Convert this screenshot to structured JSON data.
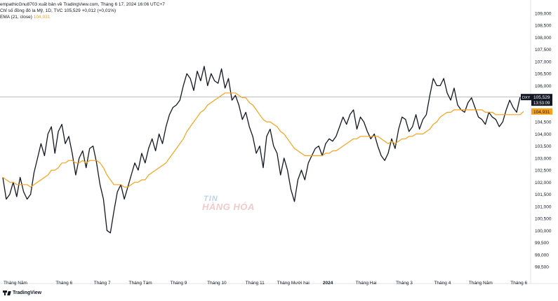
{
  "header": {
    "publisher_line": "empathicGnu8703 xuất bản về TradingView.com, Tháng 6 17, 2024 16:06 UTC+7",
    "symbol_line": "Chỉ số đồng đô la Mỹ, 1D, TVC  105,529  +0,012 (+0,01%)",
    "ema_label": "EMA (21, close)",
    "ema_value": "104,931"
  },
  "watermark": {
    "line1": "TIN",
    "line2": "HÀNG HÓA"
  },
  "footer": {
    "brand": "TradingView"
  },
  "colors": {
    "price": "#131722",
    "ema": "#f7a21b",
    "last_price_line": "#9598a1",
    "grid": "#ffffff"
  },
  "chart_data": {
    "type": "line",
    "y_axis": {
      "ticks": [
        "109,000",
        "108,500",
        "108,000",
        "107,500",
        "107,000",
        "106,500",
        "106,000",
        "105,500",
        "105,000",
        "104,500",
        "104,000",
        "103,500",
        "103,000",
        "102,500",
        "102,000",
        "101,500",
        "101,000",
        "100,500",
        "100,000",
        "99,500",
        "99,000",
        "98,500"
      ],
      "range": [
        98.3,
        109.1
      ]
    },
    "x_axis": {
      "labels": [
        "Tháng Năm",
        "Tháng 6",
        "Tháng 7",
        "Tháng Tám",
        "Tháng 9",
        "Tháng 10",
        "Tháng 11",
        "Tháng Mười hai",
        "2024",
        "Tháng Hai",
        "Tháng 3",
        "Tháng 4",
        "Tháng Năm",
        "Tháng 6"
      ],
      "label_index": [
        0,
        14,
        25,
        36,
        47,
        58,
        69,
        80,
        90,
        101,
        112,
        123,
        134,
        145
      ]
    },
    "series": [
      {
        "name": "DXY",
        "values": [
          102.2,
          101.3,
          101.5,
          102.0,
          101.4,
          102.2,
          101.6,
          101.3,
          101.5,
          102.4,
          103.0,
          103.6,
          103.1,
          104.0,
          104.3,
          103.2,
          104.1,
          104.4,
          103.6,
          103.9,
          103.2,
          102.3,
          103.0,
          103.3,
          102.6,
          103.4,
          103.5,
          102.8,
          101.9,
          101.3,
          100.0,
          99.9,
          100.8,
          101.6,
          101.9,
          101.3,
          101.8,
          102.3,
          102.8,
          102.5,
          103.2,
          102.8,
          103.4,
          103.8,
          103.3,
          104.0,
          103.6,
          104.3,
          104.8,
          105.1,
          105.2,
          105.4,
          106.0,
          106.5,
          106.3,
          105.8,
          106.6,
          106.2,
          106.8,
          106.0,
          106.5,
          106.2,
          106.1,
          106.7,
          105.9,
          106.3,
          105.4,
          105.6,
          105.2,
          104.6,
          104.9,
          104.3,
          103.9,
          103.2,
          103.5,
          102.6,
          103.9,
          104.2,
          103.5,
          103.2,
          102.3,
          103.0,
          102.5,
          101.7,
          101.2,
          102.1,
          102.5,
          102.1,
          102.8,
          103.1,
          103.4,
          103.5,
          103.1,
          103.6,
          103.8,
          103.7,
          103.9,
          104.3,
          104.7,
          104.4,
          104.8,
          105.0,
          104.2,
          104.7,
          104.5,
          104.1,
          103.8,
          104.0,
          103.5,
          103.1,
          102.9,
          103.2,
          103.8,
          103.4,
          104.2,
          104.7,
          104.6,
          104.1,
          104.3,
          104.8,
          104.2,
          104.6,
          104.8,
          105.6,
          106.3,
          106.0,
          106.0,
          106.3,
          105.7,
          105.4,
          105.9,
          105.2,
          105.0,
          104.9,
          105.3,
          105.5,
          105.1,
          104.7,
          104.6,
          104.4,
          104.9,
          104.7,
          104.6,
          104.3,
          104.5,
          105.0,
          105.4,
          105.1,
          104.9,
          105.529
        ],
        "color": "#131722"
      },
      {
        "name": "EMA (21, close)",
        "values": [
          102.2,
          102.1,
          102.0,
          102.0,
          101.9,
          101.9,
          101.9,
          101.9,
          101.8,
          101.9,
          102.0,
          102.1,
          102.2,
          102.3,
          102.5,
          102.5,
          102.6,
          102.8,
          102.8,
          102.9,
          102.9,
          102.8,
          102.8,
          102.9,
          102.8,
          102.9,
          102.9,
          102.9,
          102.8,
          102.6,
          102.3,
          102.1,
          101.9,
          101.9,
          101.9,
          101.8,
          101.8,
          101.9,
          102.0,
          102.0,
          102.1,
          102.1,
          102.3,
          102.4,
          102.5,
          102.6,
          102.7,
          102.8,
          103.0,
          103.2,
          103.4,
          103.6,
          103.8,
          104.1,
          104.3,
          104.5,
          104.7,
          104.9,
          105.0,
          105.2,
          105.3,
          105.4,
          105.5,
          105.6,
          105.7,
          105.7,
          105.7,
          105.7,
          105.6,
          105.5,
          105.5,
          105.3,
          105.2,
          105.0,
          104.8,
          104.6,
          104.5,
          104.5,
          104.4,
          104.3,
          104.1,
          104.0,
          103.8,
          103.6,
          103.4,
          103.3,
          103.2,
          103.1,
          103.1,
          103.1,
          103.1,
          103.1,
          103.1,
          103.2,
          103.2,
          103.3,
          103.3,
          103.4,
          103.5,
          103.6,
          103.7,
          103.8,
          103.8,
          103.9,
          103.9,
          103.9,
          103.9,
          103.9,
          103.9,
          103.8,
          103.7,
          103.6,
          103.7,
          103.6,
          103.7,
          103.8,
          103.8,
          103.9,
          103.9,
          104.0,
          104.0,
          104.0,
          104.1,
          104.2,
          104.4,
          104.5,
          104.7,
          104.8,
          104.9,
          104.9,
          105.0,
          105.0,
          105.0,
          105.0,
          105.0,
          105.0,
          105.0,
          105.0,
          105.0,
          104.9,
          104.9,
          104.9,
          104.8,
          104.8,
          104.8,
          104.8,
          104.8,
          104.8,
          104.8,
          104.8,
          104.931
        ],
        "color": "#f7a21b"
      }
    ],
    "last_price": {
      "symbol": "DXY",
      "value": "105,529",
      "countdown": "13:53:09"
    },
    "ema_last": "104,931",
    "grid": false,
    "legend": "top-left"
  }
}
